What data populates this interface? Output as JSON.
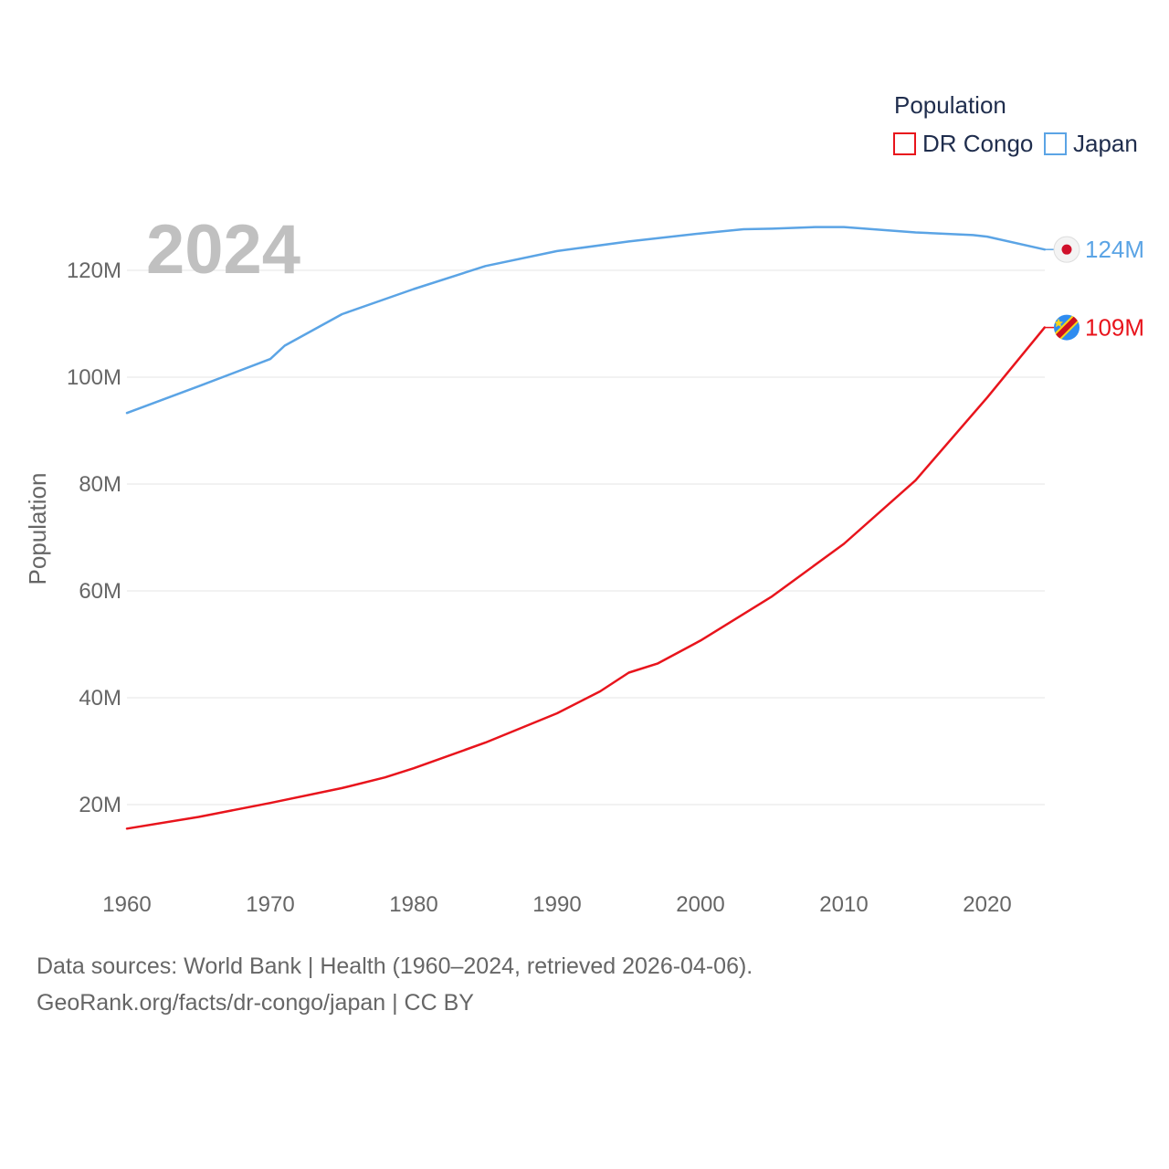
{
  "chart_data": {
    "type": "line",
    "year_overlay": "2024",
    "ylabel": "Population",
    "xlabel": "",
    "xlim": [
      1960,
      2024
    ],
    "ylim": [
      10000000,
      130000000
    ],
    "x_ticks": [
      1960,
      1970,
      1980,
      1990,
      2000,
      2010,
      2020
    ],
    "y_ticks": [
      {
        "value": 20000000,
        "label": "20M"
      },
      {
        "value": 40000000,
        "label": "40M"
      },
      {
        "value": 60000000,
        "label": "60M"
      },
      {
        "value": 80000000,
        "label": "80M"
      },
      {
        "value": 100000000,
        "label": "100M"
      },
      {
        "value": 120000000,
        "label": "120M"
      }
    ],
    "legend": {
      "title": "Population",
      "position": "top-right",
      "items": [
        {
          "name": "DR Congo",
          "color": "#e8141c"
        },
        {
          "name": "Japan",
          "color": "#5ba4e5"
        }
      ]
    },
    "series": [
      {
        "name": "Japan",
        "color": "#5ba4e5",
        "end_label": "124M",
        "flag_icon": "japan-flag-icon",
        "x": [
          1960,
          1965,
          1970,
          1971,
          1975,
          1980,
          1985,
          1990,
          1995,
          2000,
          2003,
          2005,
          2008,
          2010,
          2015,
          2019,
          2020,
          2024
        ],
        "y": [
          93300000,
          98300000,
          103400000,
          105900000,
          111800000,
          116500000,
          120800000,
          123600000,
          125400000,
          126900000,
          127700000,
          127800000,
          128100000,
          128100000,
          127100000,
          126600000,
          126300000,
          123900000
        ]
      },
      {
        "name": "DR Congo",
        "color": "#e8141c",
        "end_label": "109M",
        "flag_icon": "dr-congo-flag-icon",
        "x": [
          1960,
          1965,
          1970,
          1975,
          1978,
          1980,
          1985,
          1990,
          1993,
          1995,
          1997,
          2000,
          2005,
          2010,
          2015,
          2020,
          2024
        ],
        "y": [
          15500000,
          17700000,
          20300000,
          23100000,
          25100000,
          26800000,
          31600000,
          37100000,
          41200000,
          44700000,
          46400000,
          50700000,
          59000000,
          68800000,
          80700000,
          96200000,
          109300000
        ]
      }
    ]
  },
  "footer": {
    "line1": "Data sources: World Bank | Health (1960–2024, retrieved 2026-04-06).",
    "line2": "GeoRank.org/facts/dr-congo/japan | CC BY"
  }
}
